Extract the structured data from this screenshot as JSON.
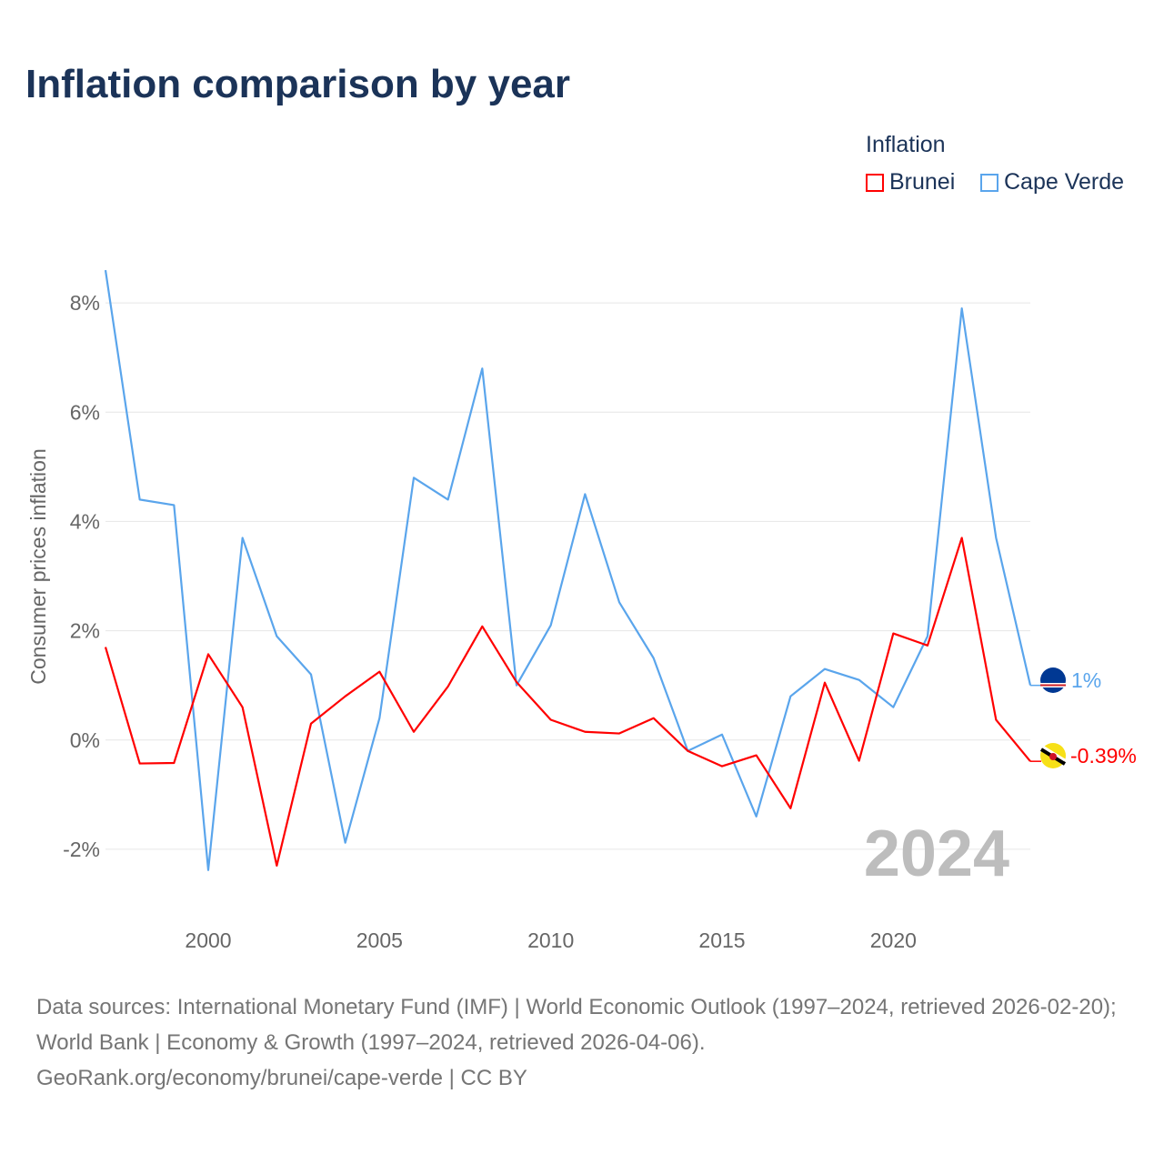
{
  "title": "Inflation comparison by year",
  "legend": {
    "title": "Inflation",
    "items": [
      {
        "name": "Brunei",
        "color": "#ff0000"
      },
      {
        "name": "Cape Verde",
        "color": "#5aa5ec"
      }
    ]
  },
  "watermark_year": "2024",
  "end_labels": {
    "brunei": "-0.39%",
    "cape_verde": "1%"
  },
  "footer": {
    "line1": "Data sources: International Monetary Fund (IMF) | World Economic Outlook (1997–2024, retrieved 2026-02-20); World Bank | Economy & Growth (1997–2024, retrieved 2026-04-06).",
    "line2": "GeoRank.org/economy/brunei/cape-verde | CC BY"
  },
  "chart_data": {
    "type": "line",
    "title": "Inflation comparison by year",
    "xlabel": "",
    "ylabel": "Consumer prices inflation",
    "x": [
      1997,
      1998,
      1999,
      2000,
      2001,
      2002,
      2003,
      2004,
      2005,
      2006,
      2007,
      2008,
      2009,
      2010,
      2011,
      2012,
      2013,
      2014,
      2015,
      2016,
      2017,
      2018,
      2019,
      2020,
      2021,
      2022,
      2023,
      2024
    ],
    "xlim": [
      1997,
      2024
    ],
    "ylim": [
      -3.1,
      9.3
    ],
    "xticks": [
      2000,
      2005,
      2010,
      2015,
      2020
    ],
    "xtick_labels": [
      "2000",
      "2005",
      "2010",
      "2015",
      "2020"
    ],
    "yticks": [
      -2,
      0,
      2,
      4,
      6,
      8
    ],
    "ytick_labels": [
      "-2%",
      "0%",
      "2%",
      "4%",
      "6%",
      "8%"
    ],
    "grid": true,
    "legend_position": "top-right",
    "series": [
      {
        "name": "Brunei",
        "color": "#ff0000",
        "values": [
          1.7,
          -0.43,
          -0.42,
          1.57,
          0.6,
          -2.3,
          0.3,
          0.8,
          1.25,
          0.15,
          0.98,
          2.08,
          1.06,
          0.37,
          0.15,
          0.12,
          0.4,
          -0.2,
          -0.48,
          -0.28,
          -1.25,
          1.05,
          -0.38,
          1.95,
          1.73,
          3.7,
          0.37,
          -0.39
        ]
      },
      {
        "name": "Cape Verde",
        "color": "#5aa5ec",
        "values": [
          8.6,
          4.4,
          4.3,
          -2.38,
          3.7,
          1.9,
          1.2,
          -1.88,
          0.4,
          4.8,
          4.4,
          6.8,
          1.0,
          2.1,
          4.5,
          2.52,
          1.5,
          -0.2,
          0.1,
          -1.4,
          0.8,
          1.3,
          1.1,
          0.6,
          1.9,
          7.9,
          3.7,
          1.0
        ]
      }
    ]
  }
}
